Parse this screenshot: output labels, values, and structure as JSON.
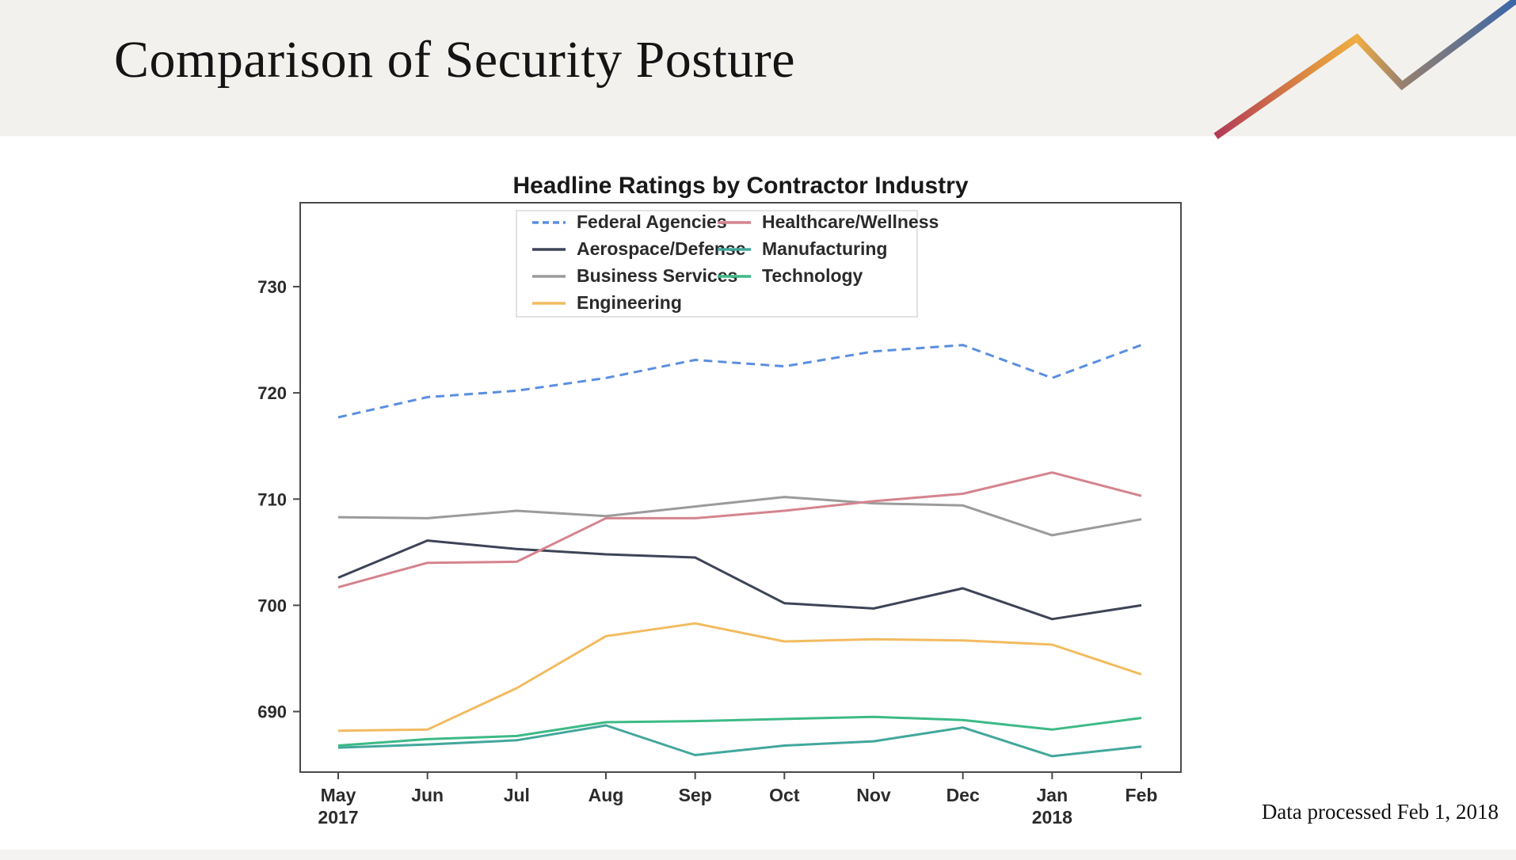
{
  "header": {
    "title": "Comparison of Security Posture"
  },
  "footer": {
    "note": "Data processed Feb 1, 2018"
  },
  "logo": {
    "name": "zigzag-trend-logo",
    "gradient_colors": [
      "#b23a56",
      "#f0ad42",
      "#97806f",
      "#3a67a8"
    ]
  },
  "chart_data": {
    "type": "line",
    "title": "Headline Ratings by Contractor Industry",
    "xlabel": "",
    "ylabel": "",
    "x_tick_labels": [
      "May",
      "Jun",
      "Jul",
      "Aug",
      "Sep",
      "Oct",
      "Nov",
      "Dec",
      "Jan",
      "Feb"
    ],
    "x_tick_sublabels": [
      "2017",
      "",
      "",
      "",
      "",
      "",
      "",
      "",
      "2018",
      ""
    ],
    "y_ticks": [
      730,
      720,
      710,
      700,
      690
    ],
    "ylim": [
      684.3,
      737.9
    ],
    "grid": false,
    "legend_position": "upper center, two columns, boxed",
    "axis_color": "#4a4a4a",
    "tick_label_color": "#2b2b2b",
    "title_color": "#191919",
    "series": [
      {
        "name": "Federal Agencies",
        "color": "#5b8ee0",
        "dash": "dashed",
        "values": [
          717.7,
          719.6,
          720.2,
          721.4,
          723.1,
          722.5,
          723.9,
          724.5,
          721.4,
          724.5
        ]
      },
      {
        "name": "Aerospace/Defense",
        "color": "#3e4457",
        "dash": "solid",
        "values": [
          702.6,
          706.1,
          705.3,
          704.8,
          704.5,
          700.2,
          699.7,
          701.6,
          698.7,
          700.0
        ]
      },
      {
        "name": "Business Services",
        "color": "#9b9b9b",
        "dash": "solid",
        "values": [
          708.3,
          708.2,
          708.9,
          708.4,
          709.3,
          710.2,
          709.6,
          709.4,
          706.6,
          708.1
        ]
      },
      {
        "name": "Engineering",
        "color": "#f2bb60",
        "dash": "solid",
        "values": [
          688.2,
          688.3,
          692.2,
          697.1,
          698.3,
          696.6,
          696.8,
          696.7,
          696.3,
          693.5
        ]
      },
      {
        "name": "Healthcare/Wellness",
        "color": "#d4848f",
        "dash": "solid",
        "values": [
          701.7,
          704.0,
          704.1,
          708.2,
          708.2,
          708.9,
          709.8,
          710.5,
          712.5,
          710.3
        ]
      },
      {
        "name": "Manufacturing",
        "color": "#42a79c",
        "dash": "solid",
        "values": [
          686.6,
          686.9,
          687.3,
          688.7,
          685.9,
          686.8,
          687.2,
          688.5,
          685.8,
          686.7
        ]
      },
      {
        "name": "Technology",
        "color": "#3dba86",
        "dash": "solid",
        "values": [
          686.8,
          687.4,
          687.7,
          689.0,
          689.1,
          689.3,
          689.5,
          689.2,
          688.3,
          689.4
        ]
      }
    ],
    "legend_columns": [
      [
        "Federal Agencies",
        "Aerospace/Defense",
        "Business Services",
        "Engineering"
      ],
      [
        "Healthcare/Wellness",
        "Manufacturing",
        "Technology"
      ]
    ]
  }
}
